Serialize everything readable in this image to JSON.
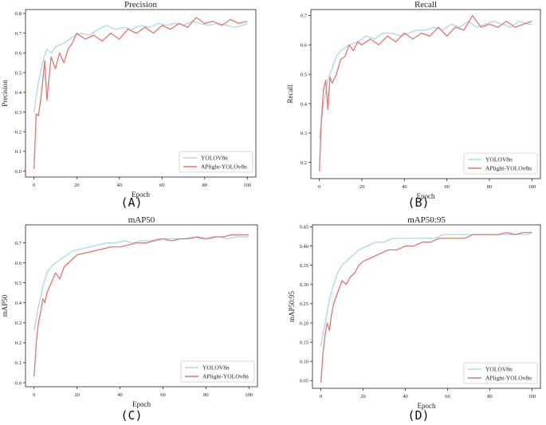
{
  "figure_labels": [
    "(A)",
    "(B)",
    "(C)",
    "(D)"
  ],
  "colors": {
    "yolov8n": "#a8d8ea",
    "aplight": "#e8736b",
    "axis": "#222222",
    "legend_border": "#cccccc"
  },
  "chart_data": [
    {
      "type": "line",
      "title": "Precision",
      "xlabel": "Epoch",
      "ylabel": "Precision",
      "xlim": [
        -4,
        104
      ],
      "ylim": [
        -0.03,
        0.82
      ],
      "xticks": [
        0,
        20,
        40,
        60,
        80,
        100
      ],
      "yticks": [
        0.0,
        0.1,
        0.2,
        0.3,
        0.4,
        0.5,
        0.6,
        0.7,
        0.8
      ],
      "ytick_labels": [
        "0.0",
        "0.1",
        "0.2",
        "0.3",
        "0.4",
        "0.5",
        "0.6",
        "0.7",
        "0.8"
      ],
      "legend_position": "lower-right",
      "series": [
        {
          "name": "YOLOV8n",
          "color_key": "yolov8n",
          "x": [
            0,
            2,
            4,
            6,
            8,
            10,
            14,
            18,
            22,
            26,
            30,
            34,
            38,
            42,
            46,
            50,
            54,
            58,
            62,
            66,
            70,
            74,
            78,
            82,
            86,
            90,
            94,
            98,
            100
          ],
          "values": [
            0.3,
            0.45,
            0.55,
            0.62,
            0.6,
            0.63,
            0.65,
            0.68,
            0.7,
            0.69,
            0.72,
            0.74,
            0.72,
            0.73,
            0.72,
            0.74,
            0.73,
            0.75,
            0.74,
            0.75,
            0.74,
            0.76,
            0.75,
            0.74,
            0.75,
            0.74,
            0.73,
            0.74,
            0.75
          ]
        },
        {
          "name": "APlight-YOLOv8n",
          "color_key": "aplight",
          "x": [
            0,
            1,
            2,
            3,
            4,
            5,
            6,
            8,
            10,
            12,
            14,
            16,
            18,
            20,
            24,
            28,
            32,
            36,
            40,
            44,
            48,
            52,
            56,
            60,
            64,
            68,
            72,
            76,
            80,
            84,
            88,
            92,
            96,
            100
          ],
          "values": [
            0.01,
            0.29,
            0.28,
            0.35,
            0.45,
            0.56,
            0.36,
            0.58,
            0.52,
            0.6,
            0.55,
            0.62,
            0.65,
            0.7,
            0.67,
            0.69,
            0.66,
            0.7,
            0.67,
            0.72,
            0.7,
            0.73,
            0.7,
            0.74,
            0.72,
            0.75,
            0.73,
            0.78,
            0.75,
            0.76,
            0.74,
            0.77,
            0.75,
            0.76
          ]
        }
      ]
    },
    {
      "type": "line",
      "title": "Recall",
      "xlabel": "Epoch",
      "ylabel": "Recall",
      "xlim": [
        -4,
        104
      ],
      "ylim": [
        0.145,
        0.72
      ],
      "xticks": [
        0,
        20,
        40,
        60,
        80,
        100
      ],
      "yticks": [
        0.2,
        0.3,
        0.4,
        0.5,
        0.6,
        0.7
      ],
      "ytick_labels": [
        "0.2",
        "0.3",
        "0.4",
        "0.5",
        "0.6",
        "0.7"
      ],
      "legend_position": "lower-right",
      "series": [
        {
          "name": "YOLOV8n",
          "color_key": "yolov8n",
          "x": [
            0,
            2,
            4,
            6,
            8,
            10,
            14,
            18,
            22,
            26,
            30,
            34,
            38,
            42,
            46,
            50,
            54,
            58,
            62,
            66,
            70,
            74,
            78,
            82,
            86,
            90,
            94,
            98,
            100
          ],
          "values": [
            0.28,
            0.4,
            0.48,
            0.52,
            0.56,
            0.58,
            0.6,
            0.61,
            0.63,
            0.62,
            0.64,
            0.64,
            0.63,
            0.64,
            0.65,
            0.65,
            0.66,
            0.65,
            0.67,
            0.66,
            0.68,
            0.66,
            0.67,
            0.68,
            0.67,
            0.66,
            0.68,
            0.67,
            0.67
          ]
        },
        {
          "name": "APlight-YOLOv8n",
          "color_key": "aplight",
          "x": [
            0,
            1,
            2,
            3,
            4,
            5,
            6,
            8,
            10,
            12,
            14,
            16,
            18,
            20,
            24,
            28,
            32,
            36,
            40,
            44,
            48,
            52,
            56,
            60,
            64,
            68,
            72,
            76,
            80,
            84,
            88,
            92,
            96,
            100
          ],
          "values": [
            0.17,
            0.35,
            0.45,
            0.48,
            0.38,
            0.49,
            0.47,
            0.5,
            0.55,
            0.56,
            0.6,
            0.58,
            0.61,
            0.6,
            0.62,
            0.6,
            0.63,
            0.61,
            0.64,
            0.62,
            0.64,
            0.63,
            0.66,
            0.63,
            0.66,
            0.65,
            0.7,
            0.66,
            0.67,
            0.66,
            0.68,
            0.66,
            0.67,
            0.68
          ]
        }
      ]
    },
    {
      "type": "line",
      "title": "mAP50",
      "xlabel": "Epoch",
      "ylabel": "mAP50",
      "xlim": [
        -4,
        104
      ],
      "ylim": [
        -0.02,
        0.79
      ],
      "xticks": [
        0,
        20,
        40,
        60,
        80,
        100
      ],
      "yticks": [
        0.0,
        0.1,
        0.2,
        0.3,
        0.4,
        0.5,
        0.6,
        0.7
      ],
      "ytick_labels": [
        "0.0",
        "0.1",
        "0.2",
        "0.3",
        "0.4",
        "0.5",
        "0.6",
        "0.7"
      ],
      "legend_position": "lower-right",
      "series": [
        {
          "name": "YOLOV8n",
          "color_key": "yolov8n",
          "x": [
            0,
            2,
            4,
            6,
            8,
            10,
            14,
            18,
            22,
            26,
            30,
            34,
            38,
            42,
            46,
            50,
            54,
            58,
            62,
            66,
            70,
            74,
            78,
            82,
            86,
            90,
            94,
            98,
            100
          ],
          "values": [
            0.26,
            0.38,
            0.48,
            0.55,
            0.58,
            0.6,
            0.63,
            0.66,
            0.67,
            0.68,
            0.69,
            0.7,
            0.7,
            0.71,
            0.7,
            0.71,
            0.71,
            0.72,
            0.72,
            0.72,
            0.72,
            0.73,
            0.72,
            0.72,
            0.73,
            0.72,
            0.73,
            0.73,
            0.73
          ]
        },
        {
          "name": "APlight-YOLOv8n",
          "color_key": "aplight",
          "x": [
            0,
            1,
            2,
            3,
            4,
            5,
            6,
            8,
            10,
            12,
            14,
            16,
            18,
            20,
            24,
            28,
            32,
            36,
            40,
            44,
            48,
            52,
            56,
            60,
            64,
            68,
            72,
            76,
            80,
            84,
            88,
            92,
            96,
            100
          ],
          "values": [
            0.03,
            0.2,
            0.3,
            0.35,
            0.42,
            0.4,
            0.45,
            0.5,
            0.55,
            0.52,
            0.58,
            0.6,
            0.62,
            0.64,
            0.65,
            0.66,
            0.67,
            0.68,
            0.68,
            0.69,
            0.7,
            0.7,
            0.71,
            0.72,
            0.71,
            0.72,
            0.72,
            0.73,
            0.72,
            0.73,
            0.73,
            0.74,
            0.74,
            0.74
          ]
        }
      ]
    },
    {
      "type": "line",
      "title": "mAP50:95",
      "xlabel": "Epoch",
      "ylabel": "mAP50:95",
      "xlim": [
        -4,
        104
      ],
      "ylim": [
        0.03,
        0.455
      ],
      "xticks": [
        0,
        20,
        40,
        60,
        80,
        100
      ],
      "yticks": [
        0.05,
        0.1,
        0.15,
        0.2,
        0.25,
        0.3,
        0.35,
        0.4,
        0.45
      ],
      "ytick_labels": [
        "0.05",
        "0.10",
        "0.15",
        "0.20",
        "0.25",
        "0.30",
        "0.35",
        "0.40",
        "0.45"
      ],
      "legend_position": "lower-right",
      "series": [
        {
          "name": "YOLOV8n",
          "color_key": "yolov8n",
          "x": [
            0,
            2,
            4,
            6,
            8,
            10,
            14,
            18,
            22,
            26,
            30,
            34,
            38,
            42,
            46,
            50,
            54,
            58,
            62,
            66,
            70,
            74,
            78,
            82,
            86,
            90,
            94,
            98,
            100
          ],
          "values": [
            0.14,
            0.2,
            0.26,
            0.3,
            0.33,
            0.35,
            0.37,
            0.39,
            0.4,
            0.41,
            0.41,
            0.42,
            0.42,
            0.42,
            0.42,
            0.42,
            0.42,
            0.43,
            0.43,
            0.43,
            0.43,
            0.43,
            0.43,
            0.43,
            0.43,
            0.43,
            0.43,
            0.43,
            0.435
          ]
        },
        {
          "name": "APlight-YOLOv8n",
          "color_key": "aplight",
          "x": [
            0,
            1,
            2,
            3,
            4,
            5,
            6,
            8,
            10,
            12,
            14,
            16,
            18,
            20,
            24,
            28,
            32,
            36,
            40,
            44,
            48,
            52,
            56,
            60,
            64,
            68,
            72,
            76,
            80,
            84,
            88,
            92,
            96,
            100
          ],
          "values": [
            0.045,
            0.12,
            0.17,
            0.2,
            0.18,
            0.22,
            0.25,
            0.28,
            0.31,
            0.3,
            0.32,
            0.33,
            0.35,
            0.36,
            0.37,
            0.38,
            0.39,
            0.39,
            0.4,
            0.4,
            0.41,
            0.41,
            0.42,
            0.42,
            0.42,
            0.42,
            0.43,
            0.43,
            0.43,
            0.43,
            0.435,
            0.43,
            0.435,
            0.435
          ]
        }
      ]
    }
  ]
}
